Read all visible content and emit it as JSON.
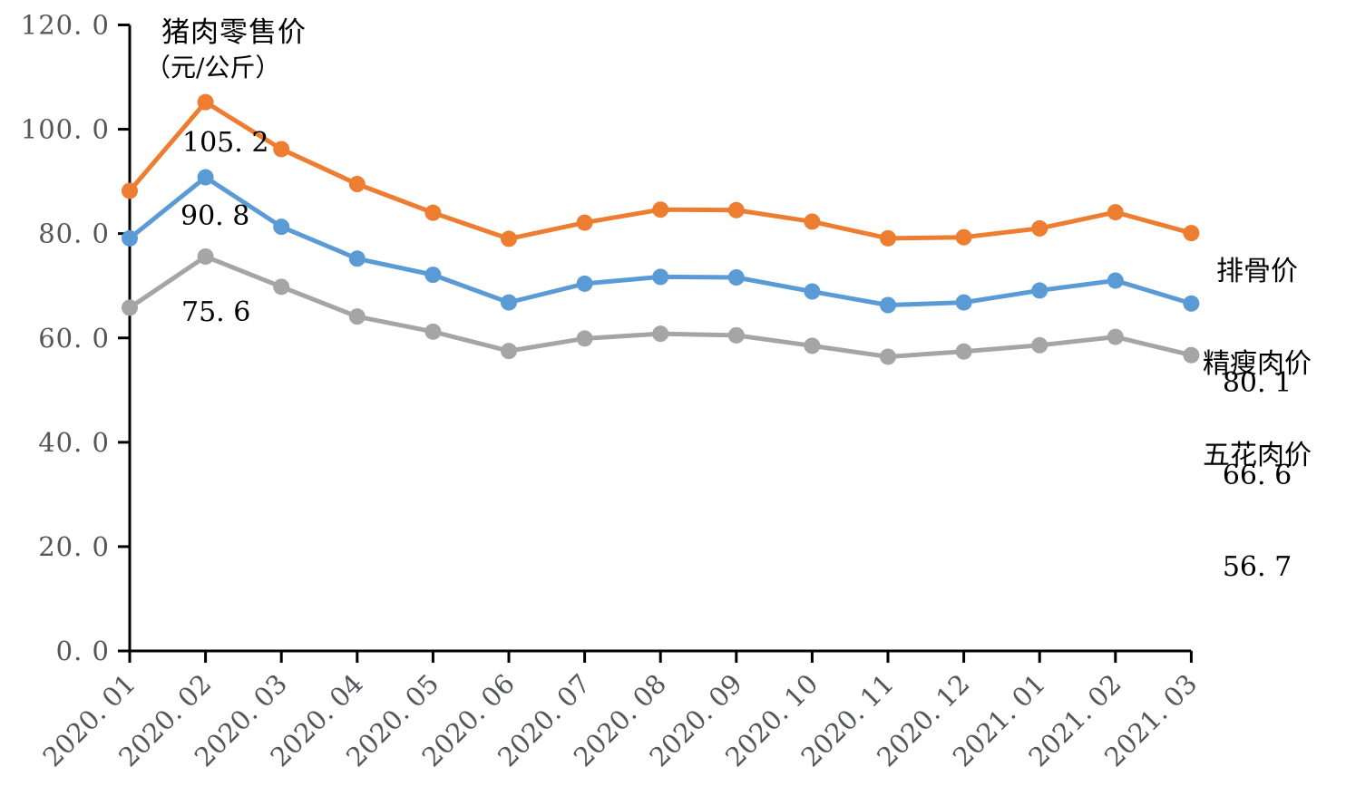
{
  "labels": {
    "title_line1": "猪肉零售价",
    "title_line2": "（元/公斤）",
    "peaks": [
      {
        "text": "105. 2"
      },
      {
        "text": "90. 8"
      },
      {
        "text": "75. 6"
      }
    ],
    "series_end": [
      {
        "name": "排骨价",
        "value": "80. 1"
      },
      {
        "name": "精瘦肉价",
        "value": "66. 6"
      },
      {
        "name": "五花肉价",
        "value": "56. 7"
      }
    ]
  },
  "chart_data": {
    "type": "line",
    "title": "猪肉零售价（元/公斤）",
    "xlabel": "",
    "ylabel": "",
    "ylim": [
      0,
      120
    ],
    "y_tick_step": 20,
    "y_tick_labels": [
      "0.0",
      "20.0",
      "40.0",
      "60.0",
      "80.0",
      "100.0",
      "120.0"
    ],
    "grid": false,
    "legend_position": "right-edge-annotations",
    "x_label_rotation_deg": -45,
    "categories": [
      "2020.01",
      "2020.02",
      "2020.03",
      "2020.04",
      "2020.05",
      "2020.06",
      "2020.07",
      "2020.08",
      "2020.09",
      "2020.10",
      "2020.11",
      "2020.12",
      "2021.01",
      "2021.02",
      "2021.03"
    ],
    "series": [
      {
        "name": "排骨价",
        "color": "#ED7D31",
        "values": [
          88.2,
          105.2,
          96.2,
          89.5,
          84.0,
          79.0,
          82.1,
          84.6,
          84.5,
          82.3,
          79.1,
          79.3,
          81.0,
          84.1,
          80.1
        ],
        "peak_label": 105.2,
        "end_label": 80.1
      },
      {
        "name": "精瘦肉价",
        "color": "#5B9BD5",
        "values": [
          79.1,
          90.8,
          81.3,
          75.2,
          72.1,
          66.8,
          70.4,
          71.7,
          71.6,
          68.9,
          66.3,
          66.8,
          69.1,
          71.0,
          66.6
        ],
        "peak_label": 90.8,
        "end_label": 66.6
      },
      {
        "name": "五花肉价",
        "color": "#A5A5A5",
        "values": [
          65.8,
          75.6,
          69.8,
          64.1,
          61.2,
          57.5,
          59.9,
          60.8,
          60.5,
          58.5,
          56.4,
          57.4,
          58.6,
          60.2,
          56.7
        ],
        "peak_label": 75.6,
        "end_label": 56.7
      }
    ],
    "style": {
      "axis_color": "#000000",
      "tick_label_color": "#54565B",
      "data_label_color": "#000000",
      "line_width": 5,
      "marker_radius": 9
    }
  }
}
